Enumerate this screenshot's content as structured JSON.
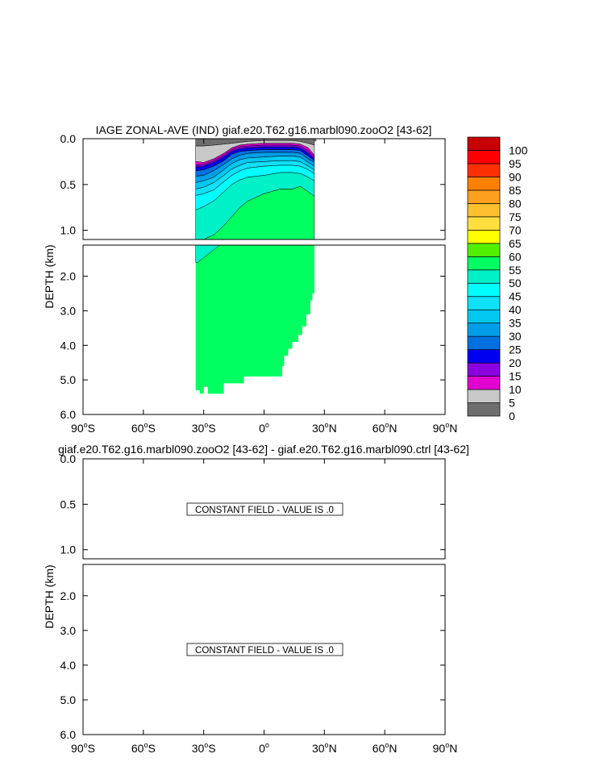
{
  "chart_data": [
    {
      "type": "heatmap",
      "title": "IAGE ZONAL-AVE (IND) giaf.e20.T62.g16.marbl090.zooO2 [43-62]",
      "ylabel": "DEPTH (km)",
      "xlim": [
        -90,
        90
      ],
      "ylim_upper_km": [
        0.0,
        1.1
      ],
      "ylim_lower_km": [
        1.1,
        6.0
      ],
      "x_ticks": [
        {
          "value": -90,
          "label": "90",
          "hemi": "S"
        },
        {
          "value": -60,
          "label": "60",
          "hemi": "S"
        },
        {
          "value": -30,
          "label": "30",
          "hemi": "S"
        },
        {
          "value": 0,
          "label": "0",
          "hemi": ""
        },
        {
          "value": 30,
          "label": "30",
          "hemi": "N"
        },
        {
          "value": 60,
          "label": "60",
          "hemi": "N"
        },
        {
          "value": 90,
          "label": "90",
          "hemi": "N"
        }
      ],
      "y_ticks_upper": [
        {
          "value": 0.0,
          "label": "0.0"
        },
        {
          "value": 0.5,
          "label": "0.5"
        },
        {
          "value": 1.0,
          "label": "1.0"
        }
      ],
      "y_ticks_lower": [
        {
          "value": 2.0,
          "label": "2.0"
        },
        {
          "value": 3.0,
          "label": "3.0"
        },
        {
          "value": 4.0,
          "label": "4.0"
        },
        {
          "value": 5.0,
          "label": "5.0"
        },
        {
          "value": 6.0,
          "label": "6.0"
        }
      ],
      "colorbar": {
        "levels": [
          "0",
          "5",
          "10",
          "15",
          "20",
          "25",
          "30",
          "35",
          "40",
          "45",
          "50",
          "55",
          "60",
          "65",
          "70",
          "75",
          "80",
          "85",
          "90",
          "95",
          "100"
        ],
        "colors": [
          "#6e6e6e",
          "#c8c8c8",
          "#e000d0",
          "#8c00e0",
          "#0000f0",
          "#0070e0",
          "#009ee8",
          "#00c8f0",
          "#10e0f8",
          "#00ffff",
          "#00f0c8",
          "#00ff60",
          "#50f000",
          "#ffff00",
          "#ffe040",
          "#ffc030",
          "#ffa020",
          "#ff8000",
          "#ff3000",
          "#ff0000",
          "#c80000"
        ]
      },
      "mixed_layer_depths": [
        {
          "lat": -34,
          "values": [
            0.0,
            0.08,
            0.25,
            0.29,
            0.31,
            0.35,
            0.41,
            0.48,
            0.55,
            0.62,
            0.78,
            1.3
          ]
        },
        {
          "lat": -30,
          "values": [
            0.0,
            0.08,
            0.26,
            0.28,
            0.3,
            0.34,
            0.4,
            0.46,
            0.53,
            0.6,
            0.74,
            1.15
          ]
        },
        {
          "lat": -25,
          "values": [
            0.0,
            0.07,
            0.22,
            0.24,
            0.26,
            0.3,
            0.35,
            0.42,
            0.48,
            0.56,
            0.68,
            1.05
          ]
        },
        {
          "lat": -20,
          "values": [
            0.0,
            0.06,
            0.16,
            0.18,
            0.2,
            0.24,
            0.28,
            0.34,
            0.4,
            0.47,
            0.58,
            0.95
          ]
        },
        {
          "lat": -16,
          "values": [
            0.0,
            0.05,
            0.1,
            0.12,
            0.14,
            0.17,
            0.22,
            0.27,
            0.33,
            0.4,
            0.5,
            0.85
          ]
        },
        {
          "lat": -12,
          "values": [
            0.0,
            0.04,
            0.07,
            0.09,
            0.11,
            0.14,
            0.18,
            0.23,
            0.29,
            0.35,
            0.45,
            0.75
          ]
        },
        {
          "lat": -8,
          "values": [
            0.0,
            0.03,
            0.06,
            0.08,
            0.1,
            0.13,
            0.16,
            0.21,
            0.26,
            0.32,
            0.42,
            0.68
          ]
        },
        {
          "lat": 0,
          "values": [
            0.0,
            0.02,
            0.05,
            0.07,
            0.09,
            0.12,
            0.15,
            0.2,
            0.25,
            0.3,
            0.4,
            0.6
          ]
        },
        {
          "lat": 8,
          "values": [
            0.0,
            0.02,
            0.05,
            0.07,
            0.09,
            0.12,
            0.15,
            0.19,
            0.24,
            0.29,
            0.37,
            0.55
          ]
        },
        {
          "lat": 14,
          "values": [
            0.0,
            0.02,
            0.05,
            0.07,
            0.09,
            0.12,
            0.15,
            0.19,
            0.24,
            0.29,
            0.37,
            0.55
          ]
        },
        {
          "lat": 18,
          "values": [
            0.0,
            0.03,
            0.06,
            0.08,
            0.1,
            0.13,
            0.16,
            0.2,
            0.25,
            0.3,
            0.38,
            0.52
          ]
        },
        {
          "lat": 22,
          "values": [
            0.0,
            0.05,
            0.1,
            0.13,
            0.16,
            0.19,
            0.22,
            0.26,
            0.3,
            0.34,
            0.42,
            0.58
          ]
        },
        {
          "lat": 25,
          "values": [
            0.0,
            0.07,
            0.18,
            0.2,
            0.22,
            0.24,
            0.26,
            0.3,
            0.34,
            0.38,
            0.46,
            0.63
          ]
        }
      ],
      "ocean_bottom_km": [
        {
          "lat": -34,
          "depth": 5.3
        },
        {
          "lat": -32,
          "depth": 5.3
        },
        {
          "lat": -30,
          "depth": 5.4
        },
        {
          "lat": -28,
          "depth": 5.2
        },
        {
          "lat": -26,
          "depth": 5.4
        },
        {
          "lat": -20,
          "depth": 5.4
        },
        {
          "lat": -18,
          "depth": 5.1
        },
        {
          "lat": -10,
          "depth": 5.1
        },
        {
          "lat": -7,
          "depth": 4.9
        },
        {
          "lat": 9,
          "depth": 4.9
        },
        {
          "lat": 10,
          "depth": 4.6
        },
        {
          "lat": 12,
          "depth": 4.3
        },
        {
          "lat": 14,
          "depth": 4.1
        },
        {
          "lat": 17,
          "depth": 3.9
        },
        {
          "lat": 19,
          "depth": 3.7
        },
        {
          "lat": 21,
          "depth": 3.45
        },
        {
          "lat": 23,
          "depth": 3.1
        },
        {
          "lat": 24,
          "depth": 2.7
        },
        {
          "lat": 25,
          "depth": 2.5
        }
      ],
      "ocean_lat_range": [
        -34,
        25
      ]
    },
    {
      "type": "heatmap",
      "title": "giaf.e20.T62.g16.marbl090.zooO2 [43-62] - giaf.e20.T62.g16.marbl090.ctrl [43-62]",
      "ylabel": "DEPTH (km)",
      "annotation_upper": "CONSTANT FIELD - VALUE IS .0",
      "annotation_lower": "CONSTANT FIELD - VALUE IS .0"
    }
  ]
}
